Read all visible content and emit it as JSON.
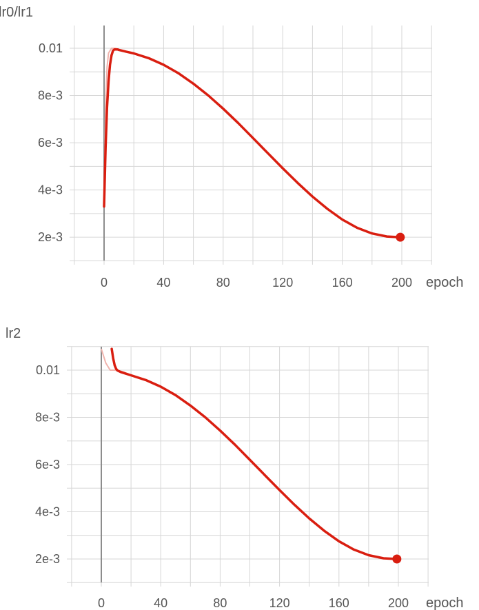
{
  "colors": {
    "line": "#d91e10",
    "ghost": "#f0b4ae",
    "grid": "#d6d6d6",
    "zero_axis": "#8c8c8c",
    "text": "#555555"
  },
  "chart_data": [
    {
      "type": "line",
      "ylabel": "lr0/lr1",
      "xlabel": "epoch",
      "x_ticks": [
        "0",
        "40",
        "80",
        "120",
        "160",
        "200"
      ],
      "y_ticks": [
        "0.01",
        "8e-3",
        "6e-3",
        "4e-3",
        "2e-3"
      ],
      "y_tick_values": [
        0.01,
        0.008,
        0.006,
        0.004,
        0.002
      ],
      "xlim": [
        -20,
        220
      ],
      "ylim": [
        0.0011,
        0.0109
      ],
      "grid": true,
      "series": [
        {
          "x": [
            0,
            1,
            2,
            3,
            4,
            5,
            6,
            7,
            8,
            9,
            10,
            15,
            20,
            30,
            40,
            50,
            60,
            70,
            80,
            90,
            100,
            110,
            120,
            130,
            140,
            150,
            160,
            170,
            180,
            190,
            199
          ],
          "y": [
            0.0033,
            0.0058,
            0.0075,
            0.0086,
            0.0093,
            0.0097,
            0.0099,
            0.00995,
            0.00995,
            0.00995,
            0.00993,
            0.00985,
            0.00978,
            0.00958,
            0.0093,
            0.00894,
            0.0085,
            0.008,
            0.00744,
            0.00684,
            0.0062,
            0.00556,
            0.00492,
            0.0043,
            0.00372,
            0.0032,
            0.00275,
            0.0024,
            0.00216,
            0.00203,
            0.002
          ]
        }
      ],
      "ghost": {
        "x": [
          0,
          1,
          2,
          3,
          5,
          8,
          10
        ],
        "y": [
          0.0033,
          0.0075,
          0.0092,
          0.0098,
          0.01,
          0.01,
          0.00993
        ]
      },
      "marker": {
        "x": 199,
        "y": 0.002
      }
    },
    {
      "type": "line",
      "ylabel": "lr2",
      "xlabel": "epoch",
      "x_ticks": [
        "0",
        "40",
        "80",
        "120",
        "160",
        "200"
      ],
      "y_ticks": [
        "0.01",
        "8e-3",
        "6e-3",
        "4e-3",
        "2e-3"
      ],
      "y_tick_values": [
        0.01,
        0.008,
        0.006,
        0.004,
        0.002
      ],
      "xlim": [
        -20,
        220
      ],
      "ylim": [
        0.0011,
        0.0109
      ],
      "grid": true,
      "series": [
        {
          "x": [
            7,
            8,
            9,
            10,
            11,
            12,
            13,
            15,
            20,
            30,
            40,
            50,
            60,
            70,
            80,
            90,
            100,
            110,
            120,
            130,
            140,
            150,
            160,
            170,
            180,
            190,
            199
          ],
          "y": [
            0.0109,
            0.0105,
            0.0102,
            0.01005,
            0.00998,
            0.00995,
            0.00992,
            0.00988,
            0.00978,
            0.00958,
            0.0093,
            0.00894,
            0.0085,
            0.008,
            0.00744,
            0.00684,
            0.0062,
            0.00556,
            0.00492,
            0.0043,
            0.00372,
            0.0032,
            0.00275,
            0.0024,
            0.00216,
            0.00203,
            0.002
          ]
        }
      ],
      "ghost": {
        "x": [
          0,
          3,
          6,
          9,
          12,
          15,
          20
        ],
        "y": [
          0.0109,
          0.0103,
          0.01,
          0.01,
          0.00998,
          0.00992,
          0.00978
        ]
      },
      "marker": {
        "x": 199,
        "y": 0.002
      }
    }
  ]
}
